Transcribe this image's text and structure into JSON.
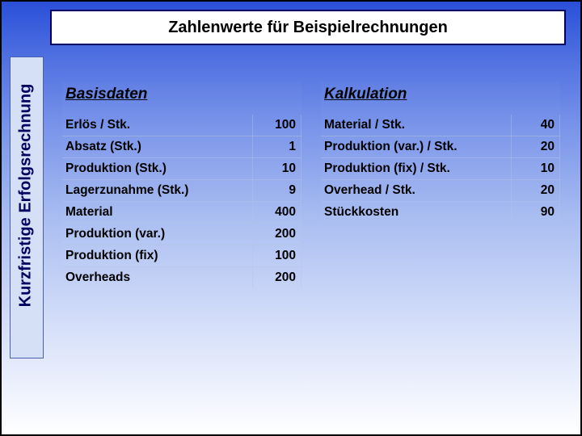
{
  "colors": {
    "frame_border": "#000000",
    "title_border": "#000060",
    "sidebar_bg": "#d5dff5",
    "sidebar_border": "#4a5fb0",
    "sidebar_text": "#000060",
    "text": "#000000",
    "grid_line": "#b4c3e6",
    "bg_gradient_top": "#2a4fd8",
    "bg_gradient_bottom": "#ffffff"
  },
  "typography": {
    "title_fontsize_pt": 15,
    "header_fontsize_pt": 14,
    "body_fontsize_pt": 12,
    "sidebar_fontsize_pt": 15,
    "font_family": "Arial"
  },
  "title": "Zahlenwerte für Beispielrechnungen",
  "sidebar_label": "Kurzfristige Erfolgsrechnung",
  "left_table": {
    "header": "Basisdaten",
    "rows": [
      {
        "label": "Erlös / Stk.",
        "value": "100"
      },
      {
        "label": "Absatz (Stk.)",
        "value": "1"
      },
      {
        "label": "Produktion (Stk.)",
        "value": "10"
      },
      {
        "label": "Lagerzunahme (Stk.)",
        "value": "9"
      },
      {
        "label": "Material",
        "value": "400"
      },
      {
        "label": "Produktion (var.)",
        "value": "200"
      },
      {
        "label": "Produktion (fix)",
        "value": "100"
      },
      {
        "label": "Overheads",
        "value": "200"
      }
    ]
  },
  "right_table": {
    "header": "Kalkulation",
    "rows": [
      {
        "label": "Material / Stk.",
        "value": "40"
      },
      {
        "label": "Produktion (var.) / Stk.",
        "value": "20"
      },
      {
        "label": "Produktion (fix) / Stk.",
        "value": "10"
      },
      {
        "label": "Overhead / Stk.",
        "value": "20"
      },
      {
        "label": "Stückkosten",
        "value": "90"
      }
    ]
  }
}
